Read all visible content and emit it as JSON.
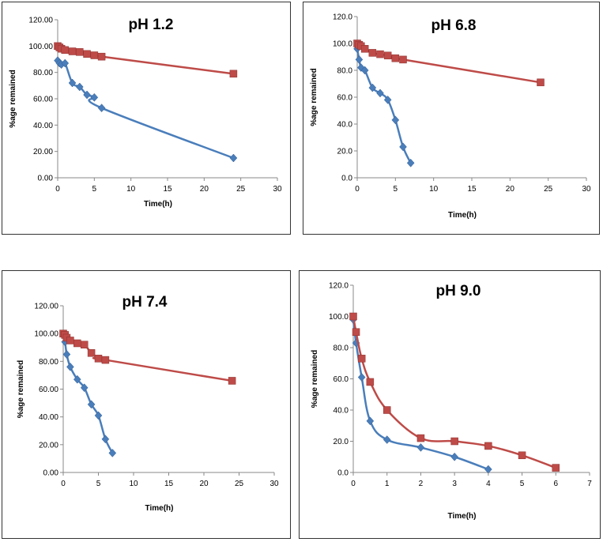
{
  "chart_data": [
    {
      "type": "line",
      "title": "pH 1.2",
      "xlabel": "Time(h)",
      "ylabel": "%age remained",
      "xlim": [
        0,
        30
      ],
      "ylim": [
        0,
        120
      ],
      "xticks": [
        "0",
        "5",
        "10",
        "15",
        "20",
        "25",
        "30"
      ],
      "yticks": [
        "0.00",
        "20.00",
        "40.00",
        "60.00",
        "80.00",
        "100.00",
        "120.00"
      ],
      "series": [
        {
          "name": "series-blue",
          "color": "#4A7EBB",
          "marker": "diamond",
          "x": [
            0,
            0.25,
            0.5,
            1,
            2,
            3,
            4,
            5,
            6,
            24
          ],
          "y": [
            89,
            87,
            86,
            87,
            72,
            69,
            63,
            61,
            53,
            15
          ]
        },
        {
          "name": "series-red",
          "color": "#BE4B48",
          "marker": "square",
          "x": [
            0,
            0.25,
            0.5,
            1,
            2,
            3,
            4,
            5,
            6,
            24
          ],
          "y": [
            100,
            99,
            98,
            97,
            96,
            95.5,
            94,
            93,
            92,
            79
          ]
        }
      ]
    },
    {
      "type": "line",
      "title": "pH 6.8",
      "xlabel": "Time(h)",
      "ylabel": "%age remained",
      "xlim": [
        0,
        30
      ],
      "ylim": [
        0,
        120
      ],
      "xticks": [
        "0",
        "5",
        "10",
        "15",
        "20",
        "25",
        "30"
      ],
      "yticks": [
        "0.0",
        "20.0",
        "40.0",
        "60.0",
        "80.0",
        "100.0",
        "120.0"
      ],
      "series": [
        {
          "name": "series-blue",
          "color": "#4A7EBB",
          "marker": "diamond",
          "x": [
            0,
            0.25,
            0.5,
            1,
            2,
            3,
            4,
            5,
            6,
            7
          ],
          "y": [
            96,
            88,
            82,
            80,
            67,
            63,
            58,
            43,
            23,
            11
          ]
        },
        {
          "name": "series-red",
          "color": "#BE4B48",
          "marker": "square",
          "x": [
            0,
            0.25,
            0.5,
            1,
            2,
            3,
            4,
            5,
            6,
            24
          ],
          "y": [
            100,
            99,
            98,
            96,
            93,
            92,
            91,
            89,
            88,
            71
          ]
        }
      ]
    },
    {
      "type": "line",
      "title": "pH 7.4",
      "xlabel": "Time(h)",
      "ylabel": "%age remained",
      "xlim": [
        0,
        30
      ],
      "ylim": [
        0,
        120
      ],
      "xticks": [
        "0",
        "5",
        "10",
        "15",
        "20",
        "25",
        "30"
      ],
      "yticks": [
        "0.00",
        "20.00",
        "40.00",
        "60.00",
        "80.00",
        "100.00",
        "120.00"
      ],
      "series": [
        {
          "name": "series-blue",
          "color": "#4A7EBB",
          "marker": "diamond",
          "x": [
            0,
            0.25,
            0.5,
            1,
            2,
            3,
            4,
            5,
            6,
            7
          ],
          "y": [
            99,
            94,
            85,
            76,
            67,
            61,
            49,
            41,
            24,
            14
          ]
        },
        {
          "name": "series-red",
          "color": "#BE4B48",
          "marker": "square",
          "x": [
            0,
            0.25,
            0.5,
            1,
            2,
            3,
            4,
            5,
            6,
            24
          ],
          "y": [
            100,
            99,
            97,
            95,
            93,
            92,
            86,
            82,
            81,
            66
          ]
        }
      ]
    },
    {
      "type": "line",
      "title": "pH 9.0",
      "xlabel": "Time(h)",
      "ylabel": "%age remained",
      "xlim": [
        0,
        7
      ],
      "ylim": [
        0,
        120
      ],
      "xticks": [
        "0",
        "1",
        "2",
        "3",
        "4",
        "5",
        "6",
        "7"
      ],
      "yticks": [
        "0.0",
        "20.0",
        "40.0",
        "60.0",
        "80.0",
        "100.0",
        "120.0"
      ],
      "series": [
        {
          "name": "series-blue",
          "color": "#4A7EBB",
          "marker": "diamond",
          "x": [
            0,
            0.083,
            0.25,
            0.5,
            1,
            2,
            3,
            4
          ],
          "y": [
            98,
            83,
            61,
            33,
            21,
            16,
            10,
            2
          ]
        },
        {
          "name": "series-red",
          "color": "#BE4B48",
          "marker": "square",
          "x": [
            0,
            0.083,
            0.25,
            0.5,
            1,
            2,
            3,
            4,
            5,
            6
          ],
          "y": [
            100,
            90,
            73,
            58,
            40,
            22,
            20,
            17,
            11,
            3
          ]
        }
      ]
    }
  ]
}
